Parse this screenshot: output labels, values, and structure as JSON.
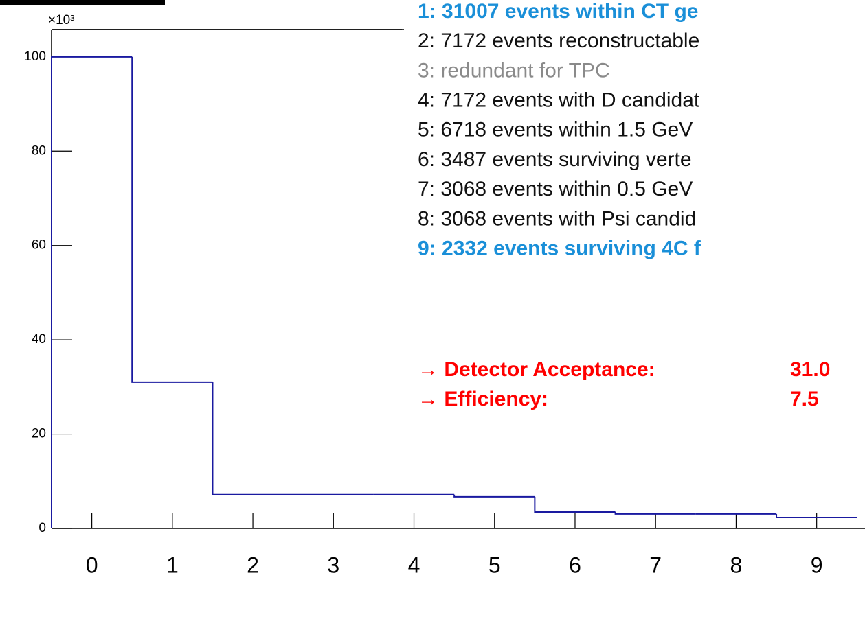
{
  "chart_data": {
    "type": "histogram",
    "y_multiplier": "×10³",
    "bins": [
      -0.5,
      0.5,
      1.5,
      2.5,
      3.5,
      4.5,
      5.5,
      6.5,
      7.5,
      8.5,
      9.5
    ],
    "values": [
      100,
      31.007,
      7.172,
      7.172,
      7.172,
      6.718,
      3.487,
      3.068,
      3.068,
      2.332
    ],
    "color": "#1a1aa0",
    "xlim": [
      -0.5,
      9.6
    ],
    "xticks": [
      0,
      1,
      2,
      3,
      4,
      5,
      6,
      7,
      8,
      9
    ],
    "ylim": [
      0,
      105.8
    ],
    "yticks": [
      0,
      20,
      40,
      60,
      80,
      100
    ],
    "legend_lines": [
      {
        "text": "1: 31007 events within CT ge",
        "color": "#1a8fd8",
        "bold": true
      },
      {
        "text": "2: 7172 events reconstructable",
        "color": "#111111",
        "bold": false
      },
      {
        "text": "3: redundant for TPC",
        "color": "#8a8a8a",
        "bold": false
      },
      {
        "text": "4: 7172 events with D candidat",
        "color": "#111111",
        "bold": false
      },
      {
        "text": "5: 6718 events within 1.5 GeV",
        "color": "#111111",
        "bold": false
      },
      {
        "text": "6: 3487 events surviving verte",
        "color": "#111111",
        "bold": false
      },
      {
        "text": "7: 3068 events within 0.5 GeV",
        "color": "#111111",
        "bold": false
      },
      {
        "text": "8: 3068 events with Psi candid",
        "color": "#111111",
        "bold": false
      },
      {
        "text": "9: 2332 events surviving 4C f",
        "color": "#1a8fd8",
        "bold": true
      }
    ],
    "results": [
      {
        "label": "→ Detector Acceptance:",
        "value": "31.0"
      },
      {
        "label": "→ Efficiency:",
        "value": "7.5"
      }
    ],
    "results_color": "#ff0000"
  }
}
